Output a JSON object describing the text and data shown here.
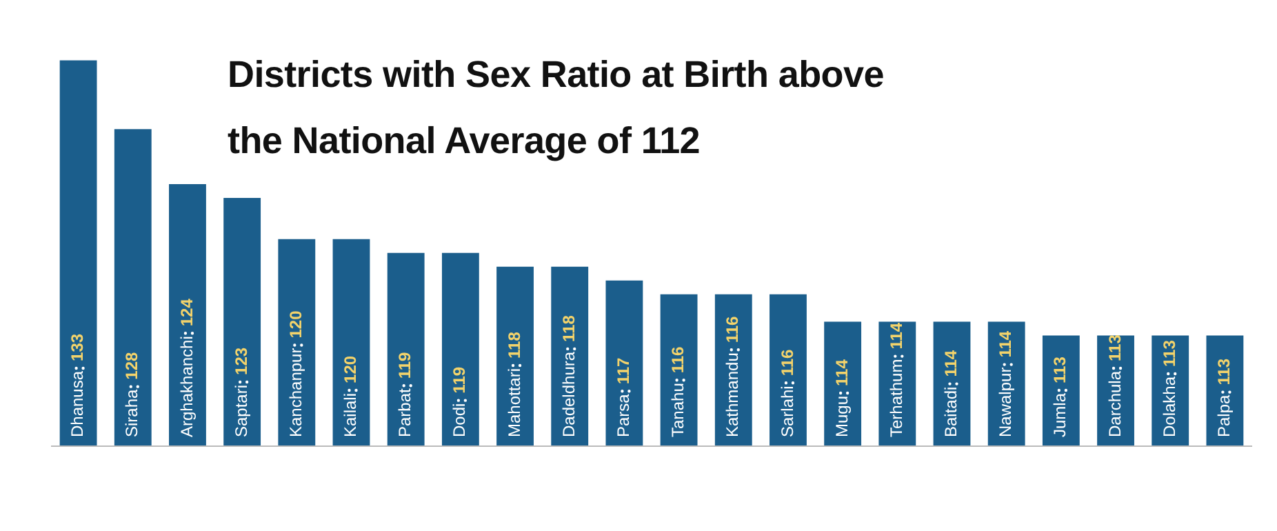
{
  "chart_data": {
    "type": "bar",
    "title": "Districts with Sex Ratio at Birth above the National Average of 112",
    "categories": [
      "Dhanusa",
      "Siraha",
      "Arghakhanchi",
      "Saptari",
      "Kanchanpur",
      "Kailali",
      "Parbat",
      "Dodi",
      "Mahottari",
      "Dadeldhura",
      "Parsa",
      "Tanahu",
      "Kathmandu",
      "Sarlahi",
      "Mugu",
      "Terhathum",
      "Baitadi",
      "Nawalpur",
      "Jumla",
      "Darchula",
      "Dolakha",
      "Palpa"
    ],
    "values": [
      133,
      128,
      124,
      123,
      120,
      120,
      119,
      119,
      118,
      118,
      117,
      116,
      116,
      116,
      114,
      114,
      114,
      114,
      113,
      113,
      113,
      113
    ],
    "color": "#1b5e8c",
    "data_labels": true,
    "tick_labels": false,
    "grid": false,
    "legend": false
  }
}
